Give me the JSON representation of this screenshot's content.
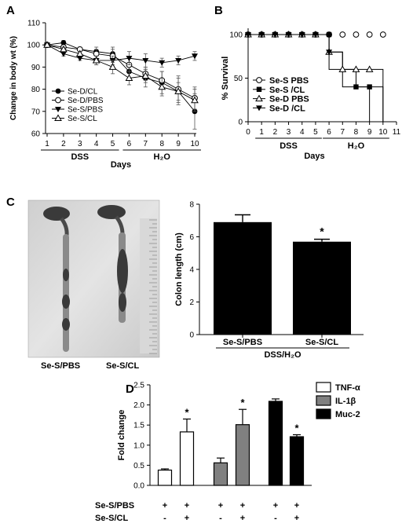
{
  "panels": {
    "a": "A",
    "b": "B",
    "c": "C",
    "d": "D"
  },
  "photo_labels": [
    "Se-S/PBS",
    "Se-S/CL"
  ],
  "chart_data": [
    {
      "id": "A",
      "type": "line",
      "ylabel": "Change in body wt (%)",
      "xlabel": "Days",
      "x": [
        1,
        2,
        3,
        4,
        5,
        6,
        7,
        8,
        9,
        10
      ],
      "xlim": [
        1,
        10
      ],
      "ylim": [
        60,
        110
      ],
      "yticks": [
        60,
        70,
        80,
        90,
        100,
        110
      ],
      "grid": false,
      "legend": "bottom-left",
      "period_labels": [
        {
          "label": "DSS",
          "from": 1,
          "to": 5
        },
        {
          "label": "H₂O",
          "from": 6,
          "to": 10
        }
      ],
      "series": [
        {
          "name": "Se-D/CL",
          "marker": "filled-circle",
          "values": [
            100,
            101,
            98,
            97,
            96,
            88,
            85,
            83,
            79,
            70
          ],
          "err": [
            0,
            1,
            1,
            2,
            3,
            3,
            4,
            5,
            6,
            8
          ]
        },
        {
          "name": "Se-D/PBS",
          "marker": "open-circle",
          "values": [
            100,
            99,
            98,
            96,
            95,
            91,
            87,
            84,
            80,
            76
          ],
          "err": [
            0,
            1,
            1,
            2,
            3,
            3,
            3,
            4,
            6,
            5
          ]
        },
        {
          "name": "Se-S/PBS",
          "marker": "filled-triangle-down",
          "values": [
            100,
            96,
            94,
            93,
            93,
            94,
            93,
            92,
            93,
            95
          ],
          "err": [
            0,
            1,
            1,
            2,
            2,
            3,
            3,
            2,
            2,
            2
          ]
        },
        {
          "name": "Se-S/CL",
          "marker": "open-triangle",
          "values": [
            100,
            98,
            96,
            93,
            90,
            85,
            86,
            81,
            79,
            75
          ],
          "err": [
            0,
            1,
            1,
            2,
            3,
            3,
            3,
            4,
            4,
            5
          ]
        }
      ]
    },
    {
      "id": "B",
      "type": "line",
      "step": true,
      "ylabel": "% Survival",
      "xlabel": "Days",
      "x": [
        0,
        1,
        2,
        3,
        4,
        5,
        6,
        7,
        8,
        9,
        10,
        11
      ],
      "xlim": [
        0,
        11
      ],
      "ylim": [
        0,
        100
      ],
      "yticks": [
        0,
        50,
        100
      ],
      "grid": false,
      "legend": "center-left",
      "period_labels": [
        {
          "label": "DSS",
          "from": 1,
          "to": 5
        },
        {
          "label": "H₂O",
          "from": 6,
          "to": 10
        }
      ],
      "series": [
        {
          "name": "Se-S PBS",
          "marker": "open-circle",
          "points": [
            [
              0,
              100
            ],
            [
              1,
              100
            ],
            [
              2,
              100
            ],
            [
              3,
              100
            ],
            [
              4,
              100
            ],
            [
              5,
              100
            ],
            [
              6,
              100
            ],
            [
              7,
              100
            ],
            [
              8,
              100
            ],
            [
              9,
              100
            ],
            [
              10,
              100
            ]
          ]
        },
        {
          "name": "Se-S /CL",
          "marker": "filled-square",
          "points": [
            [
              0,
              100
            ],
            [
              1,
              100
            ],
            [
              2,
              100
            ],
            [
              3,
              100
            ],
            [
              4,
              100
            ],
            [
              5,
              100
            ],
            [
              6,
              100
            ],
            [
              8,
              40
            ],
            [
              9,
              40
            ]
          ]
        },
        {
          "name": "Se-D PBS",
          "marker": "open-triangle",
          "points": [
            [
              0,
              100
            ],
            [
              1,
              100
            ],
            [
              2,
              100
            ],
            [
              3,
              100
            ],
            [
              4,
              100
            ],
            [
              5,
              100
            ],
            [
              6,
              80
            ],
            [
              7,
              60
            ],
            [
              8,
              60
            ],
            [
              9,
              60
            ]
          ]
        },
        {
          "name": "Se-D /CL",
          "marker": "filled-triangle-down",
          "points": [
            [
              0,
              100
            ],
            [
              1,
              100
            ],
            [
              2,
              100
            ],
            [
              3,
              100
            ],
            [
              4,
              100
            ],
            [
              5,
              100
            ],
            [
              6,
              80
            ]
          ]
        }
      ],
      "steps": [
        [
          [
            0,
            100
          ],
          [
            6,
            100
          ],
          [
            6,
            80
          ],
          [
            7,
            80
          ],
          [
            7,
            60
          ],
          [
            10,
            60
          ],
          [
            10,
            0
          ]
        ],
        [
          [
            0,
            100
          ],
          [
            6,
            100
          ],
          [
            6,
            60
          ],
          [
            8,
            60
          ],
          [
            8,
            40
          ],
          [
            9,
            40
          ],
          [
            9,
            0
          ]
        ],
        [
          [
            0,
            100
          ],
          [
            6,
            100
          ],
          [
            6,
            80
          ],
          [
            7,
            80
          ],
          [
            7,
            40
          ],
          [
            10,
            40
          ],
          [
            10,
            0
          ]
        ]
      ]
    },
    {
      "id": "C",
      "type": "bar",
      "ylabel": "Colon length (cm)",
      "categories": [
        "Se-S/PBS",
        "Se-S/CL"
      ],
      "group_label": "DSS/H₂O",
      "values": [
        6.9,
        5.7
      ],
      "err": [
        0.45,
        0.15
      ],
      "annotations": [
        "",
        "*"
      ],
      "ylim": [
        0,
        8
      ],
      "yticks": [
        0,
        2,
        4,
        6,
        8
      ]
    },
    {
      "id": "D",
      "type": "bar",
      "ylabel": "Fold change",
      "ylim": [
        0,
        2.5
      ],
      "yticks": [
        0.0,
        0.5,
        1.0,
        1.5,
        2.0,
        2.5
      ],
      "groups": [
        "TNF-α",
        "IL-1β",
        "Muc-2"
      ],
      "series": [
        {
          "name": "TNF-α",
          "fill": "#ffffff",
          "values": [
            0.38,
            1.33
          ],
          "err": [
            0.03,
            0.32
          ],
          "stars": [
            "",
            "*"
          ]
        },
        {
          "name": "IL-1β",
          "fill": "#808080",
          "values": [
            0.56,
            1.51
          ],
          "err": [
            0.12,
            0.38
          ],
          "stars": [
            "",
            "*"
          ]
        },
        {
          "name": "Muc-2",
          "fill": "#000000",
          "values": [
            2.09,
            1.21
          ],
          "err": [
            0.06,
            0.05
          ],
          "stars": [
            "",
            "*"
          ]
        }
      ],
      "condition_rows": [
        {
          "label": "Se-S/PBS",
          "marks": [
            "+",
            "+",
            "+",
            "+",
            "+",
            "+"
          ]
        },
        {
          "label": "Se-S/CL",
          "marks": [
            "-",
            "+",
            "-",
            "+",
            "-",
            "+"
          ]
        }
      ]
    }
  ]
}
